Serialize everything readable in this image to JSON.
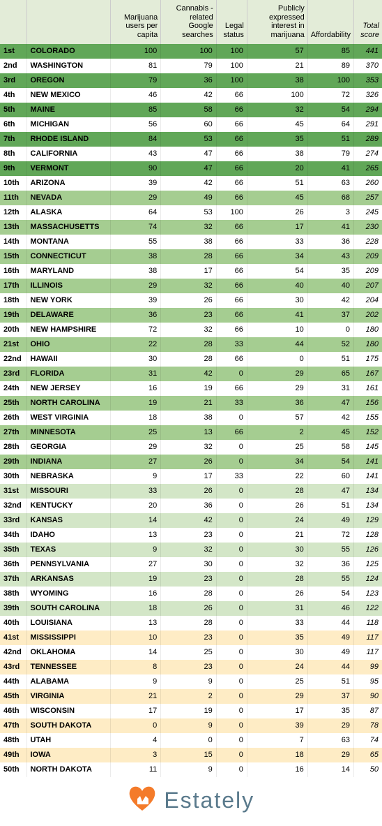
{
  "columns": [
    {
      "label": "",
      "class": "rank"
    },
    {
      "label": "",
      "class": "state"
    },
    {
      "label": "Marijuana users per capita",
      "class": "num"
    },
    {
      "label": "Cannabis -related Google searches",
      "class": "num"
    },
    {
      "label": "Legal status",
      "class": "num"
    },
    {
      "label": "Publicly expressed interest in marijuana",
      "class": "num"
    },
    {
      "label": "Affordability",
      "class": "num"
    },
    {
      "label": "Total score",
      "class": "num italic"
    }
  ],
  "row_colors": {
    "dark_green": "#61a758",
    "med_green": "#a5cd91",
    "light_green": "#d3e6c7",
    "white": "#ffffff",
    "cream": "#feecc5"
  },
  "rows": [
    {
      "rank": "1st",
      "state": "COLORADO",
      "v": [
        100,
        100,
        100,
        57,
        85
      ],
      "total": 441,
      "shade": "dark_green"
    },
    {
      "rank": "2nd",
      "state": "WASHINGTON",
      "v": [
        81,
        79,
        100,
        21,
        89
      ],
      "total": 370,
      "shade": "white"
    },
    {
      "rank": "3rd",
      "state": "OREGON",
      "v": [
        79,
        36,
        100,
        38,
        100
      ],
      "total": 353,
      "shade": "dark_green"
    },
    {
      "rank": "4th",
      "state": "NEW MEXICO",
      "v": [
        46,
        42,
        66,
        100,
        72
      ],
      "total": 326,
      "shade": "white"
    },
    {
      "rank": "5th",
      "state": "MAINE",
      "v": [
        85,
        58,
        66,
        32,
        54
      ],
      "total": 294,
      "shade": "dark_green"
    },
    {
      "rank": "6th",
      "state": "MICHIGAN",
      "v": [
        56,
        60,
        66,
        45,
        64
      ],
      "total": 291,
      "shade": "white"
    },
    {
      "rank": "7th",
      "state": "RHODE ISLAND",
      "v": [
        84,
        53,
        66,
        35,
        51
      ],
      "total": 289,
      "shade": "dark_green"
    },
    {
      "rank": "8th",
      "state": "CALIFORNIA",
      "v": [
        43,
        47,
        66,
        38,
        79
      ],
      "total": 274,
      "shade": "white"
    },
    {
      "rank": "9th",
      "state": "VERMONT",
      "v": [
        90,
        47,
        66,
        20,
        41
      ],
      "total": 265,
      "shade": "dark_green"
    },
    {
      "rank": "10th",
      "state": "ARIZONA",
      "v": [
        39,
        42,
        66,
        51,
        63
      ],
      "total": 260,
      "shade": "white"
    },
    {
      "rank": "11th",
      "state": "NEVADA",
      "v": [
        29,
        49,
        66,
        45,
        68
      ],
      "total": 257,
      "shade": "med_green"
    },
    {
      "rank": "12th",
      "state": "ALASKA",
      "v": [
        64,
        53,
        100,
        26,
        3
      ],
      "total": 245,
      "shade": "white"
    },
    {
      "rank": "13th",
      "state": "MASSACHUSETTS",
      "v": [
        74,
        32,
        66,
        17,
        41
      ],
      "total": 230,
      "shade": "med_green"
    },
    {
      "rank": "14th",
      "state": "MONTANA",
      "v": [
        55,
        38,
        66,
        33,
        36
      ],
      "total": 228,
      "shade": "white"
    },
    {
      "rank": "15th",
      "state": "CONNECTICUT",
      "v": [
        38,
        28,
        66,
        34,
        43
      ],
      "total": 209,
      "shade": "med_green"
    },
    {
      "rank": "16th",
      "state": "MARYLAND",
      "v": [
        38,
        17,
        66,
        54,
        35
      ],
      "total": 209,
      "shade": "white"
    },
    {
      "rank": "17th",
      "state": "ILLINOIS",
      "v": [
        29,
        32,
        66,
        40,
        40
      ],
      "total": 207,
      "shade": "med_green"
    },
    {
      "rank": "18th",
      "state": "NEW YORK",
      "v": [
        39,
        26,
        66,
        30,
        42
      ],
      "total": 204,
      "shade": "white"
    },
    {
      "rank": "19th",
      "state": "DELAWARE",
      "v": [
        36,
        23,
        66,
        41,
        37
      ],
      "total": 202,
      "shade": "med_green"
    },
    {
      "rank": "20th",
      "state": "NEW HAMPSHIRE",
      "v": [
        72,
        32,
        66,
        10,
        0
      ],
      "total": 180,
      "shade": "white"
    },
    {
      "rank": "21st",
      "state": "OHIO",
      "v": [
        22,
        28,
        33,
        44,
        52
      ],
      "total": 180,
      "shade": "med_green"
    },
    {
      "rank": "22nd",
      "state": "HAWAII",
      "v": [
        30,
        28,
        66,
        0,
        51
      ],
      "total": 175,
      "shade": "white"
    },
    {
      "rank": "23rd",
      "state": "FLORIDA",
      "v": [
        31,
        42,
        0,
        29,
        65
      ],
      "total": 167,
      "shade": "med_green"
    },
    {
      "rank": "24th",
      "state": "NEW JERSEY",
      "v": [
        16,
        19,
        66,
        29,
        31
      ],
      "total": 161,
      "shade": "white"
    },
    {
      "rank": "25th",
      "state": "NORTH CAROLINA",
      "v": [
        19,
        21,
        33,
        36,
        47
      ],
      "total": 156,
      "shade": "med_green"
    },
    {
      "rank": "26th",
      "state": "WEST VIRGINIA",
      "v": [
        18,
        38,
        0,
        57,
        42
      ],
      "total": 155,
      "shade": "white"
    },
    {
      "rank": "27th",
      "state": "MINNESOTA",
      "v": [
        25,
        13,
        66,
        2,
        45
      ],
      "total": 152,
      "shade": "med_green"
    },
    {
      "rank": "28th",
      "state": "GEORGIA",
      "v": [
        29,
        32,
        0,
        25,
        58
      ],
      "total": 145,
      "shade": "white"
    },
    {
      "rank": "29th",
      "state": "INDIANA",
      "v": [
        27,
        26,
        0,
        34,
        54
      ],
      "total": 141,
      "shade": "med_green"
    },
    {
      "rank": "30th",
      "state": "NEBRASKA",
      "v": [
        9,
        17,
        33,
        22,
        60
      ],
      "total": 141,
      "shade": "white"
    },
    {
      "rank": "31st",
      "state": "MISSOURI",
      "v": [
        33,
        26,
        0,
        28,
        47
      ],
      "total": 134,
      "shade": "light_green"
    },
    {
      "rank": "32nd",
      "state": "KENTUCKY",
      "v": [
        20,
        36,
        0,
        26,
        51
      ],
      "total": 134,
      "shade": "white"
    },
    {
      "rank": "33rd",
      "state": "KANSAS",
      "v": [
        14,
        42,
        0,
        24,
        49
      ],
      "total": 129,
      "shade": "light_green"
    },
    {
      "rank": "34th",
      "state": "IDAHO",
      "v": [
        13,
        23,
        0,
        21,
        72
      ],
      "total": 128,
      "shade": "white"
    },
    {
      "rank": "35th",
      "state": "TEXAS",
      "v": [
        9,
        32,
        0,
        30,
        55
      ],
      "total": 126,
      "shade": "light_green"
    },
    {
      "rank": "36th",
      "state": "PENNSYLVANIA",
      "v": [
        27,
        30,
        0,
        32,
        36
      ],
      "total": 125,
      "shade": "white"
    },
    {
      "rank": "37th",
      "state": "ARKANSAS",
      "v": [
        19,
        23,
        0,
        28,
        55
      ],
      "total": 124,
      "shade": "light_green"
    },
    {
      "rank": "38th",
      "state": "WYOMING",
      "v": [
        16,
        28,
        0,
        26,
        54
      ],
      "total": 123,
      "shade": "white"
    },
    {
      "rank": "39th",
      "state": "SOUTH CAROLINA",
      "v": [
        18,
        26,
        0,
        31,
        46
      ],
      "total": 122,
      "shade": "light_green"
    },
    {
      "rank": "40th",
      "state": "LOUISIANA",
      "v": [
        13,
        28,
        0,
        33,
        44
      ],
      "total": 118,
      "shade": "white"
    },
    {
      "rank": "41st",
      "state": "MISSISSIPPI",
      "v": [
        10,
        23,
        0,
        35,
        49
      ],
      "total": 117,
      "shade": "cream"
    },
    {
      "rank": "42nd",
      "state": "OKLAHOMA",
      "v": [
        14,
        25,
        0,
        30,
        49
      ],
      "total": 117,
      "shade": "white"
    },
    {
      "rank": "43rd",
      "state": "TENNESSEE",
      "v": [
        8,
        23,
        0,
        24,
        44
      ],
      "total": 99,
      "shade": "cream"
    },
    {
      "rank": "44th",
      "state": "ALABAMA",
      "v": [
        9,
        9,
        0,
        25,
        51
      ],
      "total": 95,
      "shade": "white"
    },
    {
      "rank": "45th",
      "state": "VIRGINIA",
      "v": [
        21,
        2,
        0,
        29,
        37
      ],
      "total": 90,
      "shade": "cream"
    },
    {
      "rank": "46th",
      "state": "WISCONSIN",
      "v": [
        17,
        19,
        0,
        17,
        35
      ],
      "total": 87,
      "shade": "white"
    },
    {
      "rank": "47th",
      "state": "SOUTH DAKOTA",
      "v": [
        0,
        9,
        0,
        39,
        29
      ],
      "total": 78,
      "shade": "cream"
    },
    {
      "rank": "48th",
      "state": "UTAH",
      "v": [
        4,
        0,
        0,
        7,
        63
      ],
      "total": 74,
      "shade": "white"
    },
    {
      "rank": "49th",
      "state": "IOWA",
      "v": [
        3,
        15,
        0,
        18,
        29
      ],
      "total": 65,
      "shade": "cream"
    },
    {
      "rank": "50th",
      "state": "NORTH DAKOTA",
      "v": [
        11,
        9,
        0,
        16,
        14
      ],
      "total": 50,
      "shade": "white"
    }
  ],
  "footer": {
    "brand": "Estately",
    "heart_color": "#f47b2a",
    "text_color": "#5a7a8c"
  }
}
